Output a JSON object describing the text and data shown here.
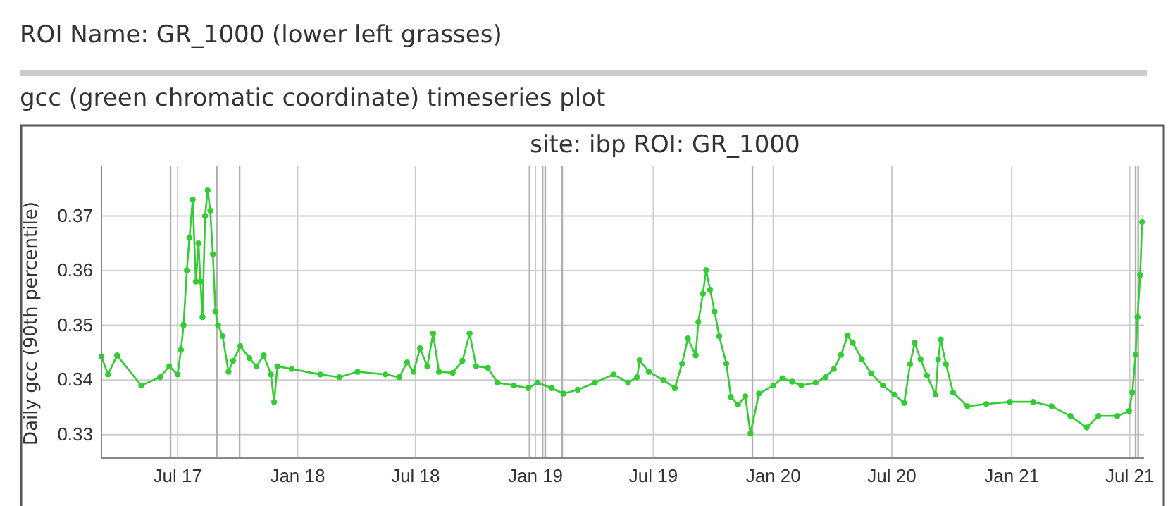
{
  "chart_data": {
    "type": "line",
    "title": "site: ibp ROI: GR_1000",
    "ylabel": "Daily gcc (90th percentile)",
    "annotations": [
      "ROI Name: GR_1000 (lower left grasses)",
      "gcc (green chromatic coordinate) timeseries plot"
    ],
    "xlim": [
      "2017-03-06",
      "2021-07-23"
    ],
    "xticks": [
      {
        "value": "2017-07-01",
        "label": "Jul 17"
      },
      {
        "value": "2018-01-01",
        "label": "Jan 18"
      },
      {
        "value": "2018-07-01",
        "label": "Jul 18"
      },
      {
        "value": "2019-01-01",
        "label": "Jan 19"
      },
      {
        "value": "2019-07-01",
        "label": "Jul 19"
      },
      {
        "value": "2020-01-01",
        "label": "Jan 20"
      },
      {
        "value": "2020-07-01",
        "label": "Jul 20"
      },
      {
        "value": "2021-01-01",
        "label": "Jan 21"
      },
      {
        "value": "2021-07-01",
        "label": "Jul 21"
      }
    ],
    "ylim": [
      0.3257,
      0.3791
    ],
    "yticks": [
      0.33,
      0.34,
      0.35,
      0.36,
      0.37
    ],
    "grid": true,
    "marker": "circle",
    "line_style": "solid",
    "ref_lines": [
      {
        "axis": "x",
        "value": "2017-06-20",
        "color": "#b0b0b0"
      },
      {
        "axis": "x",
        "value": "2017-08-30",
        "color": "#b0b0b0"
      },
      {
        "axis": "x",
        "value": "2017-10-04",
        "color": "#b0b0b0"
      },
      {
        "axis": "x",
        "value": "2018-12-23",
        "color": "#b0b0b0"
      },
      {
        "axis": "x",
        "value": "2019-01-12",
        "color": "#b0b0b0"
      },
      {
        "axis": "x",
        "value": "2019-01-16",
        "color": "#b0b0b0"
      },
      {
        "axis": "x",
        "value": "2019-02-11",
        "color": "#b0b0b0"
      },
      {
        "axis": "x",
        "value": "2019-11-30",
        "color": "#b0b0b0"
      },
      {
        "axis": "x",
        "value": "2021-07-10",
        "color": "#b0b0b0"
      },
      {
        "axis": "x",
        "value": "2021-07-14",
        "color": "#b0b0b0"
      }
    ],
    "x": [
      "2017-03-06",
      "2017-03-16",
      "2017-03-30",
      "2017-05-06",
      "2017-06-04",
      "2017-06-18",
      "2017-07-01",
      "2017-07-06",
      "2017-07-10",
      "2017-07-15",
      "2017-07-19",
      "2017-07-24",
      "2017-07-29",
      "2017-08-02",
      "2017-08-05",
      "2017-08-08",
      "2017-08-12",
      "2017-08-16",
      "2017-08-20",
      "2017-08-24",
      "2017-08-28",
      "2017-09-01",
      "2017-09-08",
      "2017-09-17",
      "2017-09-24",
      "2017-10-05",
      "2017-10-19",
      "2017-10-30",
      "2017-11-10",
      "2017-11-21",
      "2017-11-26",
      "2017-12-01",
      "2017-12-23",
      "2018-02-05",
      "2018-03-06",
      "2018-04-03",
      "2018-05-16",
      "2018-06-06",
      "2018-06-18",
      "2018-06-28",
      "2018-07-08",
      "2018-07-19",
      "2018-07-28",
      "2018-08-06",
      "2018-08-27",
      "2018-09-11",
      "2018-09-22",
      "2018-10-02",
      "2018-10-20",
      "2018-11-04",
      "2018-11-29",
      "2018-12-21",
      "2019-01-04",
      "2019-01-26",
      "2019-02-13",
      "2019-03-07",
      "2019-04-02",
      "2019-05-01",
      "2019-05-23",
      "2019-06-06",
      "2019-06-10",
      "2019-06-24",
      "2019-07-16",
      "2019-08-03",
      "2019-08-14",
      "2019-08-23",
      "2019-09-04",
      "2019-09-08",
      "2019-09-15",
      "2019-09-20",
      "2019-09-26",
      "2019-10-03",
      "2019-10-10",
      "2019-10-21",
      "2019-10-28",
      "2019-11-08",
      "2019-11-19",
      "2019-11-27",
      "2019-12-10",
      "2020-01-01",
      "2020-01-15",
      "2020-01-30",
      "2020-02-13",
      "2020-03-06",
      "2020-03-21",
      "2020-04-03",
      "2020-04-14",
      "2020-04-24",
      "2020-05-02",
      "2020-05-16",
      "2020-05-30",
      "2020-06-17",
      "2020-07-05",
      "2020-07-20",
      "2020-07-29",
      "2020-08-05",
      "2020-08-14",
      "2020-08-24",
      "2020-09-06",
      "2020-09-10",
      "2020-09-14",
      "2020-09-22",
      "2020-10-03",
      "2020-10-25",
      "2020-11-23",
      "2020-12-29",
      "2021-02-03",
      "2021-03-03",
      "2021-04-01",
      "2021-04-26",
      "2021-05-14",
      "2021-06-12",
      "2021-06-30",
      "2021-07-05",
      "2021-07-10",
      "2021-07-13",
      "2021-07-17",
      "2021-07-20"
    ],
    "series": [
      {
        "color": "#33cc33",
        "values": [
          0.3443,
          0.341,
          0.3445,
          0.339,
          0.3405,
          0.3425,
          0.341,
          0.3455,
          0.35,
          0.36,
          0.366,
          0.373,
          0.358,
          0.365,
          0.358,
          0.3515,
          0.37,
          0.3747,
          0.371,
          0.363,
          0.3525,
          0.35,
          0.348,
          0.3415,
          0.3435,
          0.3462,
          0.344,
          0.3425,
          0.3445,
          0.341,
          0.336,
          0.3425,
          0.342,
          0.341,
          0.3405,
          0.3415,
          0.341,
          0.3405,
          0.3432,
          0.3415,
          0.3458,
          0.3425,
          0.3485,
          0.3415,
          0.3413,
          0.3435,
          0.3485,
          0.3425,
          0.3422,
          0.3395,
          0.339,
          0.3385,
          0.3395,
          0.3385,
          0.3375,
          0.3382,
          0.3395,
          0.341,
          0.3395,
          0.3405,
          0.3436,
          0.3415,
          0.34,
          0.3385,
          0.343,
          0.3476,
          0.3445,
          0.3506,
          0.3558,
          0.3601,
          0.3565,
          0.3525,
          0.348,
          0.343,
          0.3369,
          0.3355,
          0.337,
          0.3302,
          0.3375,
          0.339,
          0.3403,
          0.3397,
          0.339,
          0.3395,
          0.3405,
          0.342,
          0.3446,
          0.3481,
          0.3468,
          0.3438,
          0.3412,
          0.339,
          0.3373,
          0.3358,
          0.3429,
          0.3468,
          0.3438,
          0.3408,
          0.3373,
          0.3438,
          0.3474,
          0.3429,
          0.3377,
          0.3352,
          0.3356,
          0.336,
          0.336,
          0.3352,
          0.3334,
          0.3313,
          0.3334,
          0.3334,
          0.3343,
          0.3377,
          0.3446,
          0.3515,
          0.3592,
          0.3689
        ]
      }
    ]
  }
}
